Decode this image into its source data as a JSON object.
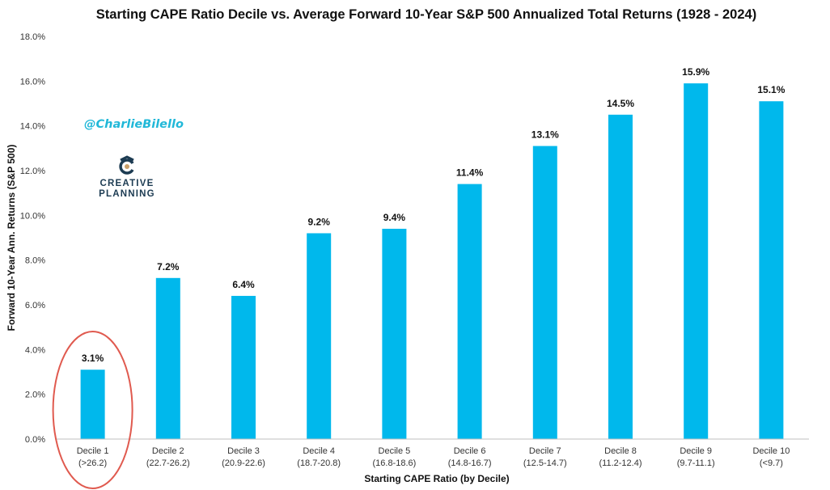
{
  "chart_data": {
    "type": "bar",
    "title": "Starting CAPE Ratio Decile vs. Average Forward 10-Year S&P 500 Annualized Total Returns (1928 - 2024)",
    "xlabel": "Starting CAPE Ratio (by Decile)",
    "ylabel": "Forward 10-Year Ann. Returns (S&P 500)",
    "categories": [
      [
        "Decile 1",
        "(>26.2)"
      ],
      [
        "Decile 2",
        "(22.7-26.2)"
      ],
      [
        "Decile 3",
        "(20.9-22.6)"
      ],
      [
        "Decile 4",
        "(18.7-20.8)"
      ],
      [
        "Decile 5",
        "(16.8-18.6)"
      ],
      [
        "Decile 6",
        "(14.8-16.7)"
      ],
      [
        "Decile 7",
        "(12.5-14.7)"
      ],
      [
        "Decile 8",
        "(11.2-12.4)"
      ],
      [
        "Decile 9",
        "(9.7-11.1)"
      ],
      [
        "Decile 10",
        "(<9.7)"
      ]
    ],
    "values": [
      3.1,
      7.2,
      6.4,
      9.2,
      9.4,
      11.4,
      13.1,
      14.5,
      15.9,
      15.1
    ],
    "data_labels": [
      "3.1%",
      "7.2%",
      "6.4%",
      "9.2%",
      "9.4%",
      "11.4%",
      "13.1%",
      "14.5%",
      "15.9%",
      "15.1%"
    ],
    "yticks": [
      0,
      2,
      4,
      6,
      8,
      10,
      12,
      14,
      16,
      18
    ],
    "ytick_labels": [
      "0.0%",
      "2.0%",
      "4.0%",
      "6.0%",
      "8.0%",
      "10.0%",
      "12.0%",
      "14.0%",
      "16.0%",
      "18.0%"
    ],
    "ylim": [
      0,
      18
    ],
    "grid": false,
    "legend": "none",
    "highlight": {
      "category_index": 0,
      "shape": "ellipse",
      "color": "#e05a4f"
    },
    "bar_color": "#00b8ec"
  },
  "annotations": {
    "handle": "@CharlieBilello",
    "logo": {
      "line1": "CREATIVE",
      "line2": "PLANNING"
    }
  },
  "colors": {
    "handle": "#21b8d8",
    "logo_dark": "#1c3b52",
    "logo_accent": "#c9a06a",
    "axis": "#bfbfbf"
  }
}
